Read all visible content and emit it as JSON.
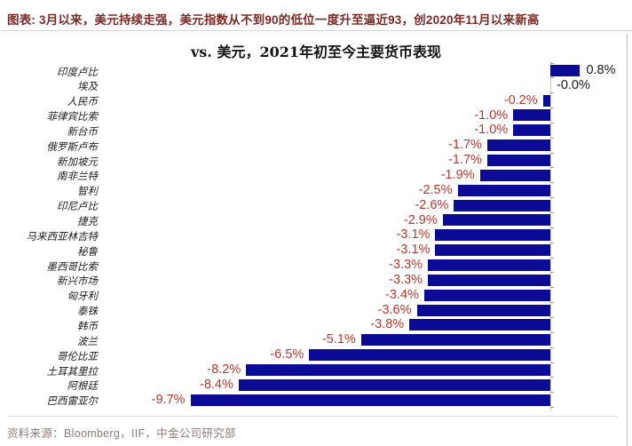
{
  "header": {
    "title": "图表: 3月以来，美元持续走强，美元指数从不到90的低位一度升至逼近93，创2020年11月以来新高"
  },
  "chart": {
    "title": "vs. 美元，2021年初至今主要货币表现"
  },
  "chart_data": {
    "type": "bar",
    "orientation": "horizontal",
    "title": "vs. 美元，2021年初至今主要货币表现",
    "categories": [
      "印度卢比",
      "埃及",
      "人民币",
      "菲律宾比索",
      "新台币",
      "俄罗斯卢布",
      "新加坡元",
      "南非兰特",
      "智利",
      "印尼卢比",
      "捷克",
      "马来西亚林吉特",
      "秘鲁",
      "墨西哥比索",
      "新兴市场",
      "匈牙利",
      "泰铢",
      "韩币",
      "波兰",
      "哥伦比亚",
      "土耳其里拉",
      "阿根廷",
      "巴西雷亚尔"
    ],
    "values": [
      0.8,
      -0.0,
      -0.2,
      -1.0,
      -1.0,
      -1.7,
      -1.7,
      -1.9,
      -2.5,
      -2.6,
      -2.9,
      -3.1,
      -3.1,
      -3.3,
      -3.3,
      -3.4,
      -3.6,
      -3.8,
      -5.1,
      -6.5,
      -8.2,
      -8.4,
      -9.7
    ],
    "value_labels": [
      "0.8%",
      "-0.0%",
      "-0.2%",
      "-1.0%",
      "-1.0%",
      "-1.7%",
      "-1.7%",
      "-1.9%",
      "-2.5%",
      "-2.6%",
      "-2.9%",
      "-3.1%",
      "-3.1%",
      "-3.3%",
      "-3.3%",
      "-3.4%",
      "-3.6%",
      "-3.8%",
      "-5.1%",
      "-6.5%",
      "-8.2%",
      "-8.4%",
      "-9.7%"
    ],
    "xlabel": "",
    "ylabel": "",
    "xlim": [
      -10.5,
      2.2
    ],
    "grid": false,
    "legend": "none",
    "bar_color": "#0b0b96",
    "negative_label_color": "#b5372e",
    "positive_label_color": "#1a1a1a"
  },
  "footer": {
    "source": "资料来源：Bloomberg，IIF，中金公司研究部"
  }
}
